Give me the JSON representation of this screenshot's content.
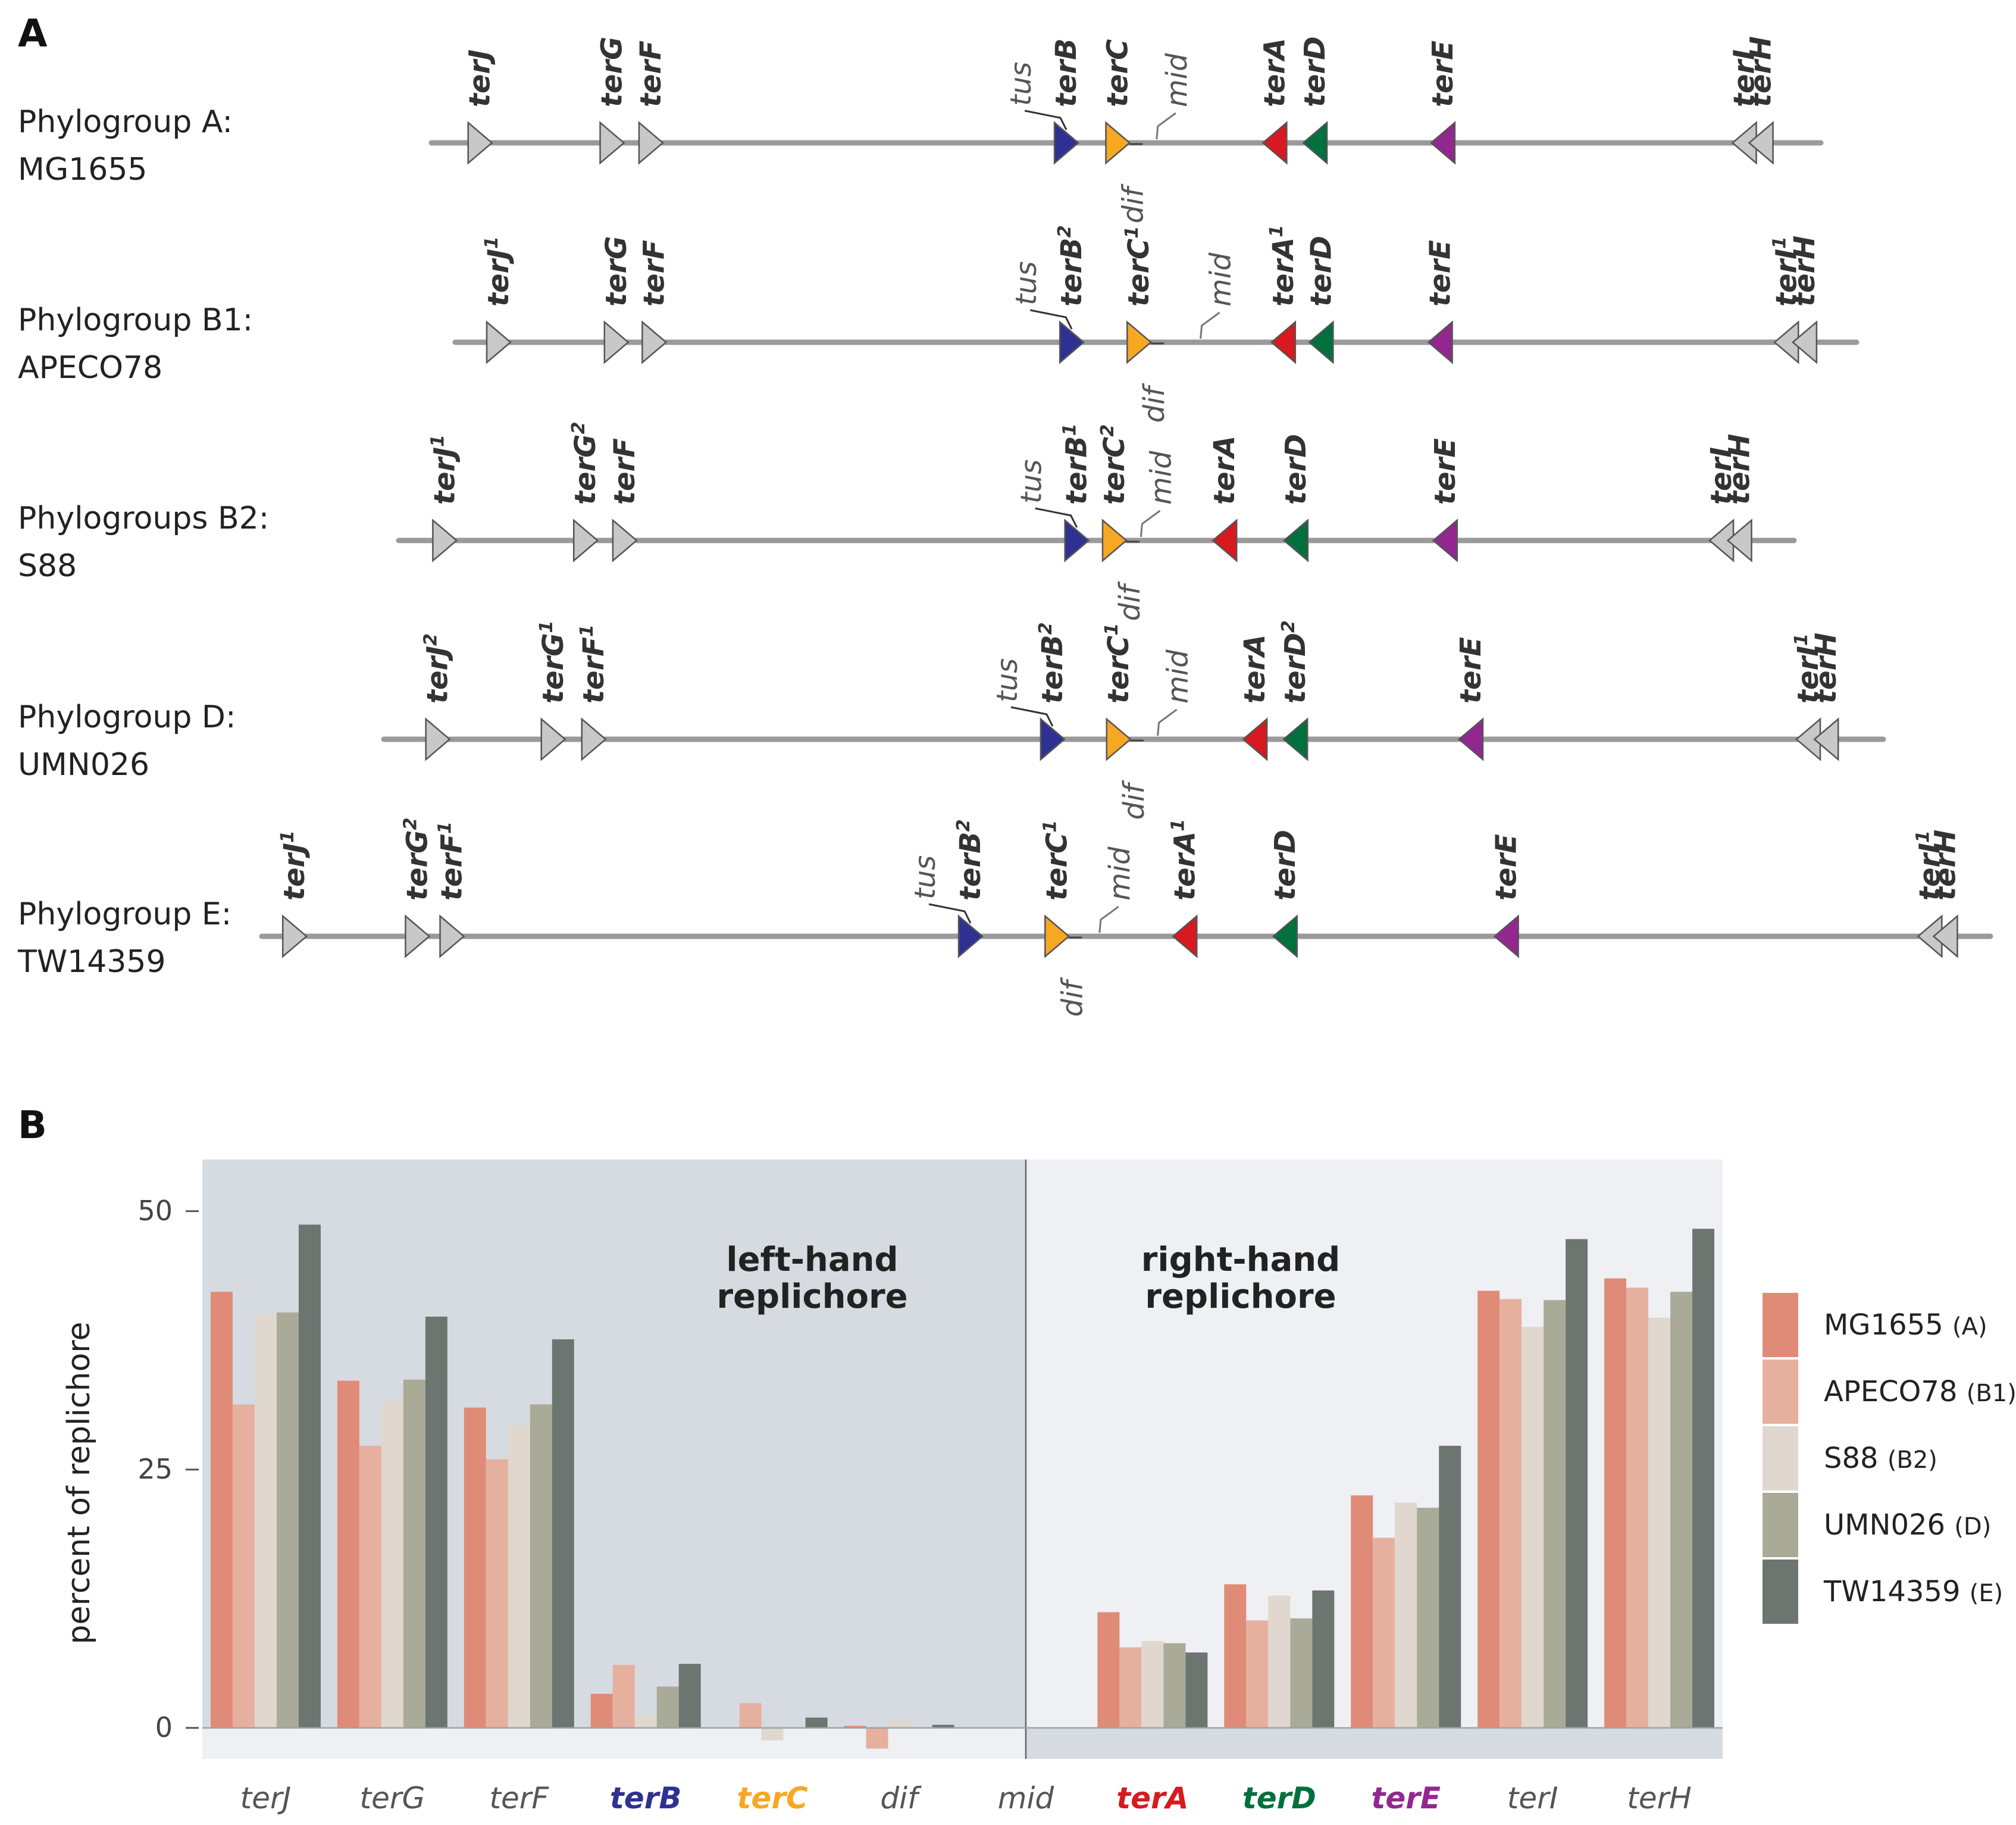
{
  "panel_a": {
    "label": "A",
    "colors": {
      "gray": "#c8c8c8",
      "terB": "#2e3192",
      "terC": "#f7a823",
      "terA": "#d71920",
      "terD": "#00703c",
      "terE": "#92278f"
    },
    "rows": [
      {
        "label_line1": "Phylogroup A:",
        "label_line2": "MG1655",
        "genes": [
          {
            "name": "terJ",
            "sup": "",
            "color": "gray",
            "dir": "right",
            "pos": 0.035
          },
          {
            "name": "terG",
            "sup": "",
            "color": "gray",
            "dir": "right",
            "pos": 0.13
          },
          {
            "name": "terF",
            "sup": "",
            "color": "gray",
            "dir": "right",
            "pos": 0.158
          },
          {
            "name": "terB",
            "sup": "",
            "color": "terB",
            "dir": "right",
            "pos": 0.457
          },
          {
            "name": "terC",
            "sup": "",
            "color": "terC",
            "dir": "right",
            "pos": 0.494
          },
          {
            "name": "terA",
            "sup": "",
            "color": "terA",
            "dir": "left",
            "pos": 0.607
          },
          {
            "name": "terD",
            "sup": "",
            "color": "terD",
            "dir": "left",
            "pos": 0.636
          },
          {
            "name": "terE",
            "sup": "",
            "color": "terE",
            "dir": "left",
            "pos": 0.728
          },
          {
            "name": "terI",
            "sup": "",
            "color": "gray",
            "dir": "left",
            "pos": 0.945
          },
          {
            "name": "terH",
            "sup": "",
            "color": "gray",
            "dir": "left",
            "pos": 0.957
          }
        ],
        "tus_text": "tus",
        "mid_text": "mid",
        "dif_text": "dif",
        "mid_pos": 0.51,
        "dif_pos": 0.51
      },
      {
        "label_line1": "Phylogroup B1:",
        "label_line2": "APECO78",
        "genes": [
          {
            "name": "terJ",
            "sup": "1",
            "color": "gray",
            "dir": "right",
            "pos": 0.031
          },
          {
            "name": "terG",
            "sup": "",
            "color": "gray",
            "dir": "right",
            "pos": 0.115
          },
          {
            "name": "terF",
            "sup": "",
            "color": "gray",
            "dir": "right",
            "pos": 0.142
          },
          {
            "name": "terB",
            "sup": "2",
            "color": "terB",
            "dir": "right",
            "pos": 0.44
          },
          {
            "name": "terC",
            "sup": "1",
            "color": "terC",
            "dir": "right",
            "pos": 0.488
          },
          {
            "name": "terA",
            "sup": "1",
            "color": "terA",
            "dir": "left",
            "pos": 0.591
          },
          {
            "name": "terD",
            "sup": "",
            "color": "terD",
            "dir": "left",
            "pos": 0.618
          },
          {
            "name": "terE",
            "sup": "",
            "color": "terE",
            "dir": "left",
            "pos": 0.703
          },
          {
            "name": "terI",
            "sup": "1",
            "color": "gray",
            "dir": "left",
            "pos": 0.95
          },
          {
            "name": "terH",
            "sup": "",
            "color": "gray",
            "dir": "left",
            "pos": 0.963
          }
        ],
        "tus_text": "tus",
        "mid_text": "mid",
        "dif_text": "dif",
        "mid_pos": 0.52,
        "dif_pos": 0.505
      },
      {
        "label_line1": "Phylogroups B2:",
        "label_line2": "S88",
        "genes": [
          {
            "name": "terJ",
            "sup": "1",
            "color": "gray",
            "dir": "right",
            "pos": 0.033
          },
          {
            "name": "terG",
            "sup": "2",
            "color": "gray",
            "dir": "right",
            "pos": 0.134
          },
          {
            "name": "terF",
            "sup": "",
            "color": "gray",
            "dir": "right",
            "pos": 0.162
          },
          {
            "name": "terB",
            "sup": "1",
            "color": "terB",
            "dir": "right",
            "pos": 0.486
          },
          {
            "name": "terC",
            "sup": "2",
            "color": "terC",
            "dir": "right",
            "pos": 0.513
          },
          {
            "name": "terA",
            "sup": "",
            "color": "terA",
            "dir": "left",
            "pos": 0.592
          },
          {
            "name": "terD",
            "sup": "",
            "color": "terD",
            "dir": "left",
            "pos": 0.643
          },
          {
            "name": "terE",
            "sup": "",
            "color": "terE",
            "dir": "left",
            "pos": 0.75
          },
          {
            "name": "terI",
            "sup": "",
            "color": "gray",
            "dir": "left",
            "pos": 0.948
          },
          {
            "name": "terH",
            "sup": "",
            "color": "gray",
            "dir": "left",
            "pos": 0.961
          }
        ],
        "tus_text": "tus",
        "mid_text": "mid",
        "dif_text": "dif",
        "mid_pos": 0.52,
        "dif_pos": 0.52
      },
      {
        "label_line1": "Phylogroup D:",
        "label_line2": "UMN026",
        "genes": [
          {
            "name": "terJ",
            "sup": "2",
            "color": "gray",
            "dir": "right",
            "pos": 0.036
          },
          {
            "name": "terG",
            "sup": "1",
            "color": "gray",
            "dir": "right",
            "pos": 0.113
          },
          {
            "name": "terF",
            "sup": "1",
            "color": "gray",
            "dir": "right",
            "pos": 0.14
          },
          {
            "name": "terB",
            "sup": "2",
            "color": "terB",
            "dir": "right",
            "pos": 0.446
          },
          {
            "name": "terC",
            "sup": "1",
            "color": "terC",
            "dir": "right",
            "pos": 0.49
          },
          {
            "name": "terA",
            "sup": "",
            "color": "terA",
            "dir": "left",
            "pos": 0.581
          },
          {
            "name": "terD",
            "sup": "2",
            "color": "terD",
            "dir": "left",
            "pos": 0.608
          },
          {
            "name": "terE",
            "sup": "",
            "color": "terE",
            "dir": "left",
            "pos": 0.725
          },
          {
            "name": "terI",
            "sup": "1",
            "color": "gray",
            "dir": "left",
            "pos": 0.95
          },
          {
            "name": "terH",
            "sup": "",
            "color": "gray",
            "dir": "left",
            "pos": 0.962
          }
        ],
        "tus_text": "tus",
        "mid_text": "mid",
        "dif_text": "dif",
        "mid_pos": 0.505,
        "dif_pos": 0.505
      },
      {
        "label_line1": "Phylogroup E:",
        "label_line2": "TW14359",
        "genes": [
          {
            "name": "terJ",
            "sup": "1",
            "color": "gray",
            "dir": "right",
            "pos": 0.019
          },
          {
            "name": "terG",
            "sup": "2",
            "color": "gray",
            "dir": "right",
            "pos": 0.09
          },
          {
            "name": "terF",
            "sup": "1",
            "color": "gray",
            "dir": "right",
            "pos": 0.11
          },
          {
            "name": "terB",
            "sup": "2",
            "color": "terB",
            "dir": "right",
            "pos": 0.41
          },
          {
            "name": "terC",
            "sup": "1",
            "color": "terC",
            "dir": "right",
            "pos": 0.46
          },
          {
            "name": "terA",
            "sup": "1",
            "color": "terA",
            "dir": "left",
            "pos": 0.534
          },
          {
            "name": "terD",
            "sup": "",
            "color": "terD",
            "dir": "left",
            "pos": 0.592
          },
          {
            "name": "terE",
            "sup": "",
            "color": "terE",
            "dir": "left",
            "pos": 0.72
          },
          {
            "name": "terI",
            "sup": "1",
            "color": "gray",
            "dir": "left",
            "pos": 0.965
          },
          {
            "name": "terH",
            "sup": "",
            "color": "gray",
            "dir": "left",
            "pos": 0.974
          }
        ],
        "tus_text": "tus",
        "mid_text": "mid",
        "dif_text": "dif",
        "mid_pos": 0.475,
        "dif_pos": 0.475
      }
    ]
  },
  "panel_b": {
    "label": "B",
    "left_region": "left-hand\nreplichore",
    "right_region": "right-hand\nreplichore",
    "left_bg": "#d6dbe1",
    "right_bg": "#eef0f4"
  },
  "chart_data": {
    "type": "bar",
    "title": "",
    "xlabel": "",
    "ylabel": "percent of replichore",
    "ylim": [
      -3,
      55
    ],
    "yticks": [
      0,
      25,
      50
    ],
    "legend_position": "right",
    "categories": [
      "terJ",
      "terG",
      "terF",
      "terB",
      "terC",
      "dif",
      "mid",
      "terA",
      "terD",
      "terE",
      "terI",
      "terH"
    ],
    "category_colors": [
      "#555555",
      "#555555",
      "#555555",
      "#2e3192",
      "#f7a823",
      "#555555",
      "#555555",
      "#d71920",
      "#00703c",
      "#92278f",
      "#555555",
      "#555555"
    ],
    "category_italic": [
      true,
      true,
      true,
      true,
      true,
      true,
      false,
      true,
      true,
      true,
      true,
      true
    ],
    "category_bold": [
      false,
      false,
      false,
      true,
      true,
      false,
      false,
      true,
      true,
      true,
      false,
      false
    ],
    "series": [
      {
        "name": "MG1655",
        "group": "(A)",
        "color": "#e08b78",
        "values": [
          42.2,
          33.6,
          31.0,
          3.3,
          0,
          0.2,
          null,
          11.2,
          13.9,
          22.5,
          42.3,
          43.5
        ]
      },
      {
        "name": "APECO78",
        "group": "(B1)",
        "color": "#e6b09f",
        "values": [
          31.3,
          27.3,
          26.0,
          6.1,
          2.4,
          -2.0,
          null,
          7.8,
          10.4,
          18.4,
          41.5,
          42.6
        ]
      },
      {
        "name": "S88",
        "group": "(B2)",
        "color": "#e0d8ce",
        "values": [
          40.0,
          31.7,
          29.3,
          1.2,
          -1.2,
          0.8,
          null,
          8.4,
          12.8,
          21.8,
          38.8,
          39.7
        ]
      },
      {
        "name": "UMN026",
        "group": "(D)",
        "color": "#a9aa98",
        "values": [
          40.2,
          33.7,
          31.3,
          4.0,
          0,
          0,
          null,
          8.2,
          10.6,
          21.3,
          41.4,
          42.2
        ]
      },
      {
        "name": "TW14359",
        "group": "(E)",
        "color": "#6d7570",
        "values": [
          48.7,
          39.8,
          37.6,
          6.2,
          1.0,
          0.3,
          null,
          7.3,
          13.3,
          27.3,
          47.3,
          48.3
        ]
      }
    ]
  }
}
